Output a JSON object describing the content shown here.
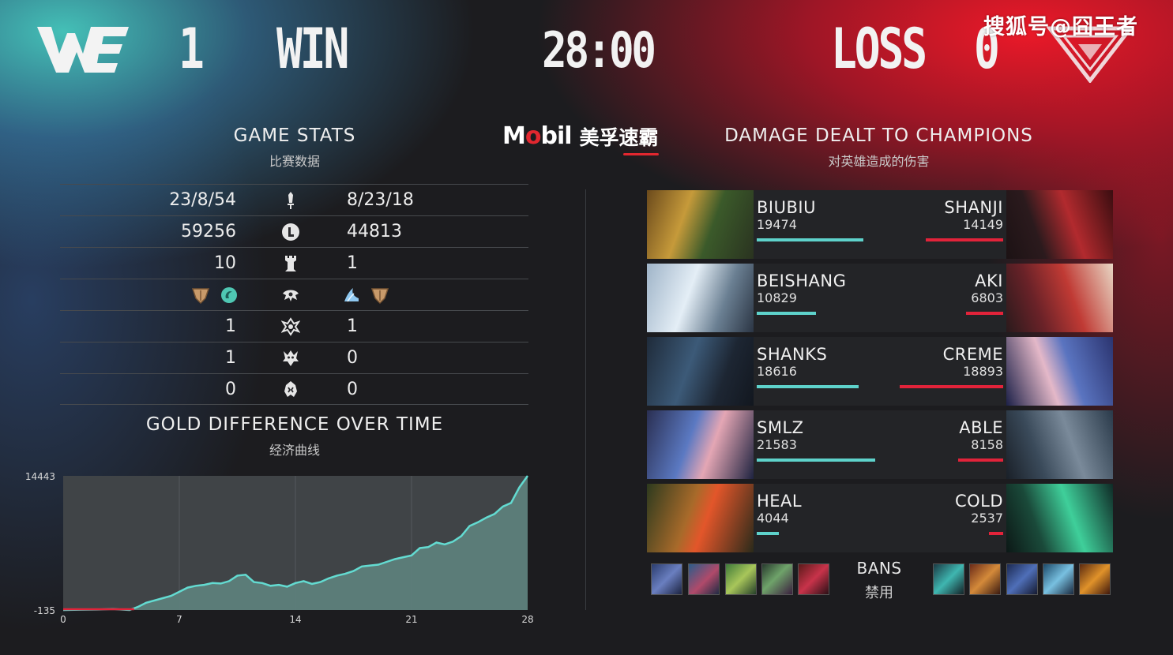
{
  "header": {
    "left_team_score": "1",
    "left_result": "WIN",
    "game_time": "28:00",
    "right_result": "LOSS",
    "right_team_score": "0",
    "watermark": "搜狐号@囧王者"
  },
  "sponsor": {
    "brand": "Mobil",
    "brand_cn": "美孚速霸"
  },
  "game_stats": {
    "title": "GAME STATS",
    "subtitle": "比赛数据",
    "rows": [
      {
        "icon": "sword-icon",
        "left": "23/8/54",
        "right": "8/23/18"
      },
      {
        "icon": "gold-coin-icon",
        "left": "59256",
        "right": "44813"
      },
      {
        "icon": "tower-icon",
        "left": "10",
        "right": "1"
      },
      {
        "icon": "dragon-icon",
        "left": "",
        "right": ""
      },
      {
        "icon": "rift-herald-icon",
        "left": "1",
        "right": "1"
      },
      {
        "icon": "baron-icon",
        "left": "1",
        "right": "0"
      },
      {
        "icon": "elder-dragon-icon",
        "left": "0",
        "right": "0"
      }
    ],
    "dragons_left": [
      "earth-dragon-icon",
      "ocean-dragon-icon"
    ],
    "dragons_right": [
      "cloud-dragon-icon",
      "earth-dragon-icon"
    ]
  },
  "gold_chart": {
    "title": "GOLD DIFFERENCE OVER TIME",
    "subtitle": "经济曲线"
  },
  "chart_data": {
    "type": "area",
    "title": "GOLD DIFFERENCE OVER TIME",
    "x_ticks": [
      "0",
      "7",
      "14",
      "21",
      "28"
    ],
    "y_ticks": [
      "14443",
      "-135"
    ],
    "xlim": [
      0,
      28
    ],
    "ylim": [
      -135,
      14443
    ],
    "grid": true,
    "series": [
      {
        "x": [
          0,
          1,
          2,
          3,
          4,
          4.5,
          5,
          6,
          6.5,
          7,
          7.5,
          8,
          8.5,
          9,
          9.5,
          10,
          10.5,
          11,
          11.5,
          12,
          12.5,
          13,
          13.5,
          14,
          14.5,
          15,
          15.5,
          16,
          16.5,
          17,
          17.5,
          18,
          18.5,
          19,
          19.5,
          20,
          20.5,
          21,
          21.5,
          22,
          22.5,
          23,
          23.5,
          24,
          24.5,
          25,
          25.5,
          26,
          26.5,
          27,
          27.5,
          28
        ],
        "y": [
          -135,
          -100,
          -80,
          -30,
          -135,
          200,
          650,
          1150,
          1400,
          1850,
          2300,
          2500,
          2600,
          2800,
          2750,
          3000,
          3600,
          3700,
          2900,
          2800,
          2500,
          2600,
          2400,
          2800,
          3000,
          2700,
          2900,
          3300,
          3600,
          3800,
          4100,
          4600,
          4700,
          4800,
          5100,
          5400,
          5600,
          5800,
          6600,
          6700,
          7200,
          7000,
          7300,
          7900,
          9000,
          9400,
          9900,
          10300,
          11100,
          11500,
          13200,
          14443
        ]
      }
    ]
  },
  "damage": {
    "title": "DAMAGE DEALT TO CHAMPIONS",
    "subtitle": "对英雄造成的伤害",
    "max": 21583,
    "rows": [
      {
        "left_name": "BIUBIU",
        "left_damage": 19474,
        "right_name": "SHANJI",
        "right_damage": 14149
      },
      {
        "left_name": "BEISHANG",
        "left_damage": 10829,
        "right_name": "AKI",
        "right_damage": 6803
      },
      {
        "left_name": "SHANKS",
        "left_damage": 18616,
        "right_name": "CREME",
        "right_damage": 18893
      },
      {
        "left_name": "SMLZ",
        "left_damage": 21583,
        "right_name": "ABLE",
        "right_damage": 8158
      },
      {
        "left_name": "HEAL",
        "left_damage": 4044,
        "right_name": "COLD",
        "right_damage": 2537
      }
    ]
  },
  "bans": {
    "label": "BANS",
    "sub": "禁用"
  },
  "colors": {
    "blue_team": "#5ed2cb",
    "red_team": "#e2233a",
    "chart_fill": "#5d7f7b",
    "chart_line": "#63dbd1"
  }
}
